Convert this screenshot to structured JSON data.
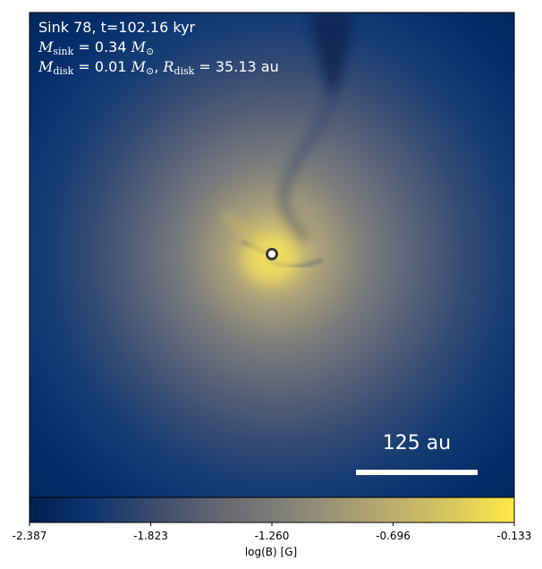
{
  "panel": {
    "title": "Sink 78, t=102.16 kyr",
    "m_sink": {
      "symbol": "M",
      "subscript": "sink",
      "equals": "= 0.34",
      "unit_symbol": "M",
      "unit_subscript": "⊙"
    },
    "m_disk": {
      "symbol": "M",
      "subscript": "disk",
      "equals": "= 0.01",
      "unit_symbol": "M",
      "unit_subscript": "⊙",
      "separator": ", ",
      "r_symbol": "R",
      "r_subscript": "disk",
      "r_equals": "= 35.13",
      "r_unit": "au"
    }
  },
  "scale_bar": {
    "label": "125 au"
  },
  "colorbar": {
    "label": "log(B) [G]",
    "min": -2.387,
    "max": -0.133,
    "ticks": [
      "-2.387",
      "-1.823",
      "-1.260",
      "-0.696",
      "-0.133"
    ],
    "colormap": "cividis",
    "low_color": "#00204d",
    "high_color": "#ffea46"
  },
  "sink_marker": {
    "fill": "#ffffff",
    "edge": "#3a3a3a"
  }
}
